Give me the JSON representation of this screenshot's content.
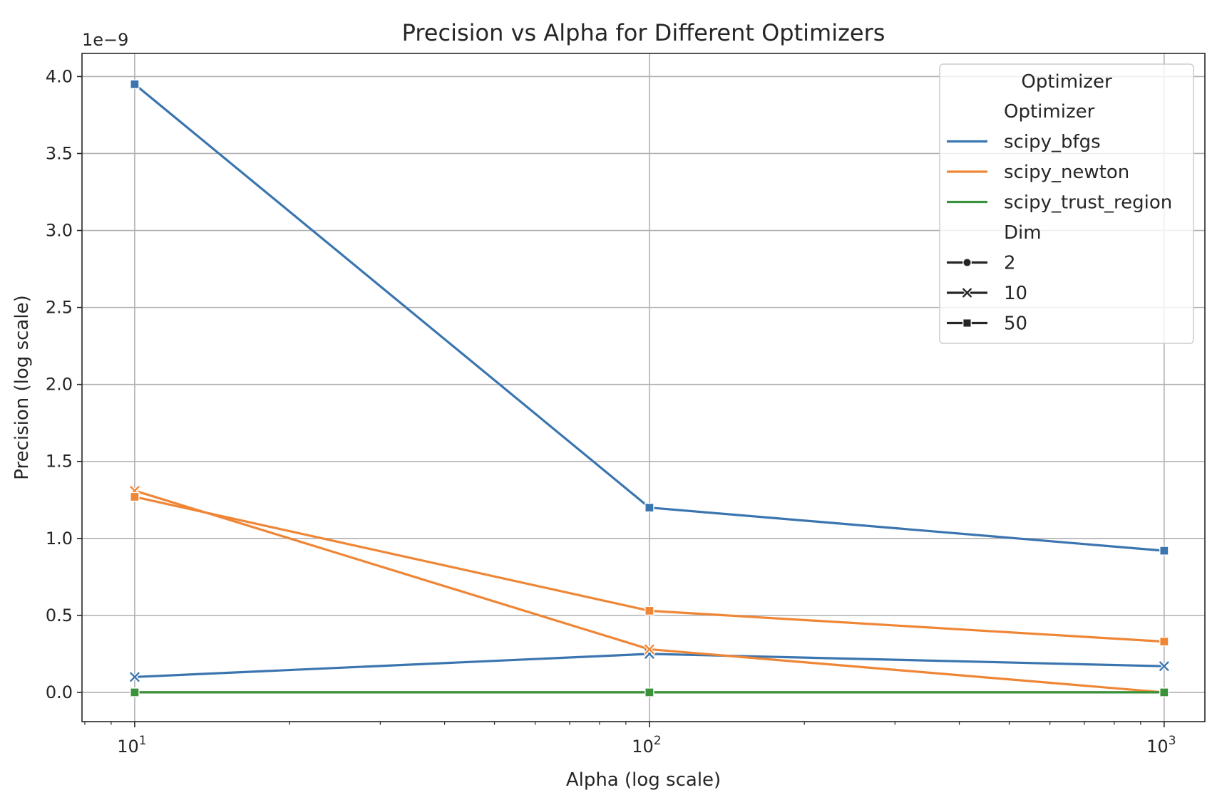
{
  "chart_data": {
    "type": "line",
    "title": "Precision vs Alpha for Different Optimizers",
    "xlabel": "Alpha (log scale)",
    "ylabel": "Precision (log scale)",
    "x_scale": "log",
    "y_offset_label": "1e−9",
    "x": [
      10,
      100,
      1000
    ],
    "xlim": [
      7.9,
      1200
    ],
    "ylim": [
      -0.19,
      4.15
    ],
    "x_ticks": [
      {
        "value": 10,
        "base": "10",
        "exp": "1"
      },
      {
        "value": 100,
        "base": "10",
        "exp": "2"
      },
      {
        "value": 1000,
        "base": "10",
        "exp": "3"
      }
    ],
    "y_ticks": [
      0.0,
      0.5,
      1.0,
      1.5,
      2.0,
      2.5,
      3.0,
      3.5,
      4.0
    ],
    "y_tick_labels": [
      "0.0",
      "0.5",
      "1.0",
      "1.5",
      "2.0",
      "2.5",
      "3.0",
      "3.5",
      "4.0"
    ],
    "grid": true,
    "legend_position": "top-right",
    "colors": {
      "scipy_bfgs": "#3b75af",
      "scipy_newton": "#ef8636",
      "scipy_trust_region": "#3a923a",
      "axis": "#262626",
      "grid": "#b0b0b0"
    },
    "series": [
      {
        "optimizer": "scipy_bfgs",
        "dim": "2",
        "marker": "circle",
        "values": [
          0.0,
          0.0,
          0.0
        ]
      },
      {
        "optimizer": "scipy_bfgs",
        "dim": "10",
        "marker": "x",
        "values": [
          0.1,
          0.25,
          0.17
        ]
      },
      {
        "optimizer": "scipy_bfgs",
        "dim": "50",
        "marker": "square",
        "values": [
          3.95,
          1.2,
          0.92
        ]
      },
      {
        "optimizer": "scipy_newton",
        "dim": "2",
        "marker": "circle",
        "values": [
          0.0,
          0.0,
          0.0
        ]
      },
      {
        "optimizer": "scipy_newton",
        "dim": "10",
        "marker": "x",
        "values": [
          1.31,
          0.28,
          0.0
        ]
      },
      {
        "optimizer": "scipy_newton",
        "dim": "50",
        "marker": "square",
        "values": [
          1.27,
          0.53,
          0.33
        ]
      },
      {
        "optimizer": "scipy_trust_region",
        "dim": "2",
        "marker": "circle",
        "values": [
          0.0,
          0.0,
          0.0
        ]
      },
      {
        "optimizer": "scipy_trust_region",
        "dim": "10",
        "marker": "x",
        "values": [
          0.0,
          0.0,
          0.0
        ]
      },
      {
        "optimizer": "scipy_trust_region",
        "dim": "50",
        "marker": "square",
        "values": [
          0.0,
          0.0,
          0.0
        ]
      }
    ],
    "legend": {
      "title": "Optimizer",
      "hue_header": "Optimizer",
      "hue_entries": [
        {
          "label": "scipy_bfgs",
          "color": "#3b75af"
        },
        {
          "label": "scipy_newton",
          "color": "#ef8636"
        },
        {
          "label": "scipy_trust_region",
          "color": "#3a923a"
        }
      ],
      "style_header": "Dim",
      "style_entries": [
        {
          "label": "2",
          "marker": "circle"
        },
        {
          "label": "10",
          "marker": "x"
        },
        {
          "label": "50",
          "marker": "square"
        }
      ]
    }
  }
}
